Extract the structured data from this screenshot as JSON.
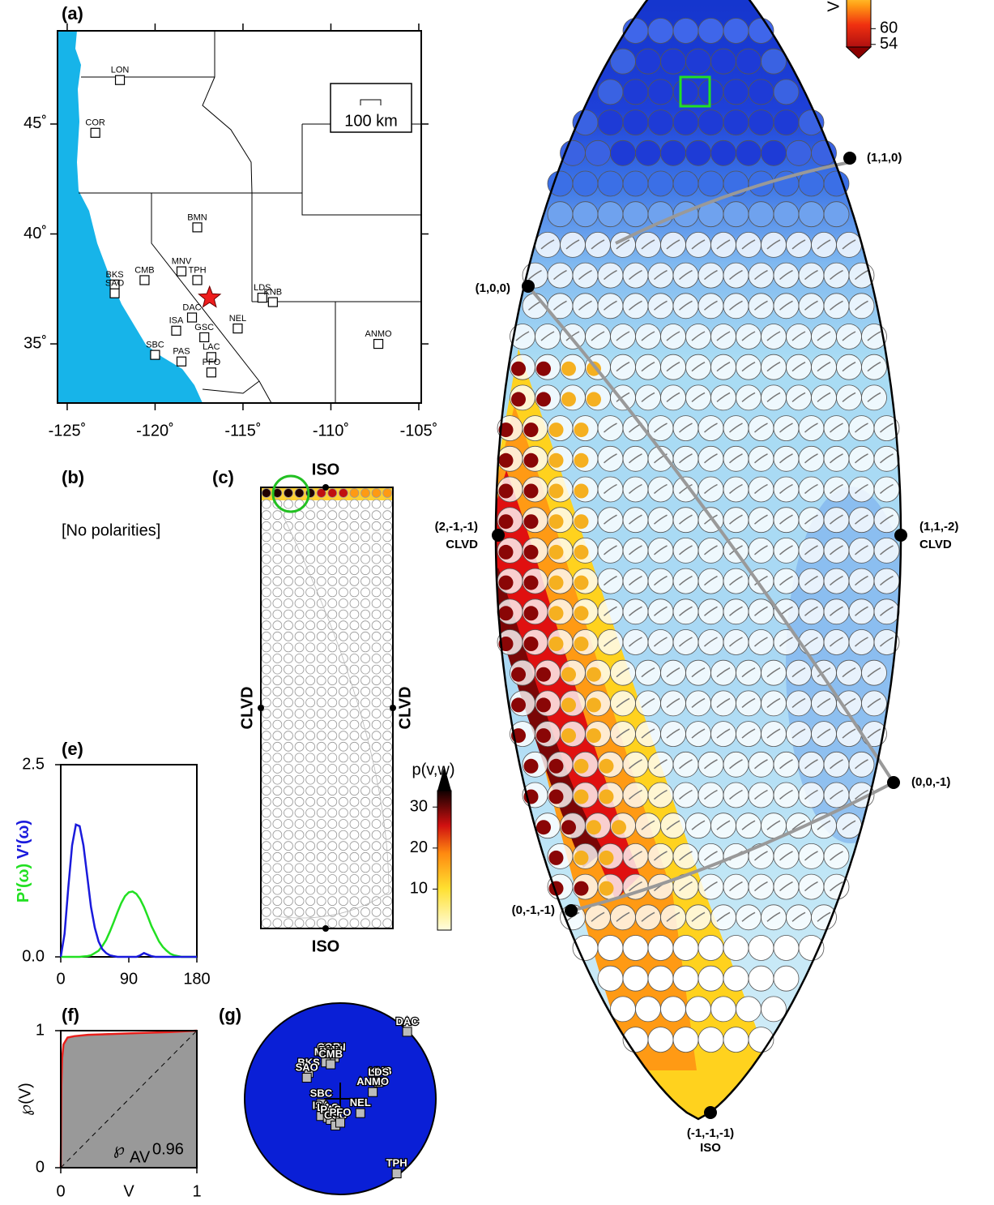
{
  "chart_data": [
    {
      "type": "map",
      "label": "(a)",
      "xlim": [
        -125.55,
        -104.86
      ],
      "ylim": [
        32.31,
        49.24
      ],
      "xticks": [
        {
          "value": -125,
          "label": "-125˚"
        },
        {
          "value": -120,
          "label": "-120˚"
        },
        {
          "value": -115,
          "label": "-115˚"
        },
        {
          "value": -110,
          "label": "-110˚"
        },
        {
          "value": -105,
          "label": "-105˚"
        }
      ],
      "yticks": [
        {
          "value": 35,
          "label": "35˚"
        },
        {
          "value": 40,
          "label": "40˚"
        },
        {
          "value": 45,
          "label": "45˚"
        }
      ],
      "scale_label": "100 km",
      "stations": [
        "LON",
        "COR",
        "BMN",
        "MNV",
        "TPH",
        "CMB",
        "BKS",
        "SAO",
        "DAC",
        "ISA",
        "NEL",
        "GSC",
        "LAC",
        "PFO",
        "PAS",
        "SBC",
        "LDS",
        "KNB",
        "ANMO"
      ],
      "x": [
        -122.0,
        -123.4,
        -117.6,
        -118.5,
        -117.6,
        -120.6,
        -122.3,
        -122.3,
        -117.9,
        -118.8,
        -115.3,
        -117.2,
        -116.8,
        -116.8,
        -118.5,
        -120.0,
        -113.9,
        -113.3,
        -107.3
      ],
      "y": [
        47.0,
        44.6,
        40.3,
        38.3,
        37.9,
        37.9,
        37.7,
        37.3,
        36.2,
        35.6,
        35.7,
        35.3,
        34.4,
        33.7,
        34.2,
        34.5,
        37.1,
        36.9,
        35.0
      ],
      "epicenter": {
        "x": -116.9,
        "y": 37.1,
        "color": "#ee1c1c"
      },
      "ocean_color": "#17b4e9"
    },
    {
      "type": "line",
      "label": "(e)",
      "x": [
        0,
        5,
        10,
        15,
        20,
        25,
        30,
        35,
        40,
        45,
        50,
        55,
        60,
        65,
        70,
        75,
        80,
        85,
        90,
        95,
        100,
        105,
        110,
        115,
        120,
        125,
        130,
        135,
        140,
        145,
        150,
        155,
        160,
        165,
        170,
        175,
        180
      ],
      "series": [
        {
          "name": "P'(ω)",
          "color": "#22e022",
          "values": [
            0,
            0,
            0,
            0,
            0,
            0,
            0.005,
            0.01,
            0.02,
            0.05,
            0.08,
            0.14,
            0.22,
            0.33,
            0.45,
            0.58,
            0.7,
            0.79,
            0.84,
            0.85,
            0.82,
            0.75,
            0.65,
            0.53,
            0.4,
            0.3,
            0.2,
            0.13,
            0.08,
            0.04,
            0.02,
            0.01,
            0,
            0,
            0,
            0,
            0
          ]
        },
        {
          "name": "V'(ω)",
          "color": "#1a1adc",
          "values": [
            0,
            0.3,
            0.9,
            1.45,
            1.72,
            1.7,
            1.45,
            1.05,
            0.65,
            0.38,
            0.2,
            0.1,
            0.05,
            0.02,
            0.01,
            0,
            0,
            0,
            0,
            0,
            0,
            0.02,
            0.05,
            0.03,
            0.01,
            0,
            0,
            0,
            0,
            0,
            0,
            0,
            0,
            0,
            0,
            0,
            0
          ]
        }
      ],
      "xlim": [
        0,
        180
      ],
      "ylim": [
        0,
        2.5
      ],
      "xticks": [
        0,
        90,
        180
      ],
      "yticks": [
        {
          "value": 0,
          "label": "0.0"
        },
        {
          "value": 2.5,
          "label": "2.5"
        }
      ]
    },
    {
      "type": "area",
      "label": "(f)",
      "x": [
        0,
        0.005,
        0.01,
        0.02,
        0.05,
        0.1,
        0.2,
        0.5,
        0.8,
        1
      ],
      "values": [
        0,
        0.6,
        0.8,
        0.9,
        0.95,
        0.96,
        0.97,
        0.98,
        0.99,
        1
      ],
      "color": "#e8201c",
      "fill": "#999999",
      "xlim": [
        0,
        1
      ],
      "ylim": [
        0,
        1
      ],
      "xticks": [
        0,
        1
      ],
      "yticks": [
        0,
        1
      ],
      "xlabel": "V",
      "ylabel": "℘(V)",
      "annotation": {
        "symbol": "℘",
        "subscript": "AV",
        "value": 0.96
      }
    },
    {
      "type": "scatter",
      "label": "(g)",
      "stations": [
        "LON",
        "COR",
        "BMN",
        "MNV",
        "CMB",
        "BKS",
        "SAO",
        "KNB",
        "LDS",
        "ANMO",
        "NEL",
        "SBC",
        "ISA",
        "LAC",
        "PAS",
        "GSC",
        "PFO",
        "DAC",
        "TPH"
      ],
      "x": [
        -0.06,
        -0.12,
        -0.1,
        -0.15,
        -0.1,
        -0.33,
        -0.35,
        0.42,
        0.4,
        0.34,
        0.21,
        -0.2,
        -0.2,
        -0.13,
        -0.1,
        -0.05,
        0.0,
        0.7,
        0.59
      ],
      "y": [
        0.43,
        0.43,
        0.4,
        0.38,
        0.36,
        0.27,
        0.22,
        0.18,
        0.17,
        0.07,
        -0.15,
        -0.05,
        -0.18,
        -0.2,
        -0.22,
        -0.28,
        -0.25,
        0.7,
        -0.78
      ],
      "xlim": [
        -1,
        1
      ],
      "ylim": [
        -1,
        1
      ],
      "color": "#0a1fd6"
    },
    {
      "type": "lune",
      "colorbar": {
        "label": "V",
        "ticks": [
          54,
          60
        ],
        "clim": [
          53,
          74
        ]
      },
      "points": [
        {
          "label": "(1,1,0)"
        },
        {
          "label": "(1,0,0)"
        },
        {
          "label": "(2,-1,-1)",
          "name": "CLVD"
        },
        {
          "label": "(1,1,-2)",
          "name": "CLVD"
        },
        {
          "label": "(0,0,-1)"
        },
        {
          "label": "(0,-1,-1)"
        },
        {
          "label": "(-1,-1,-1)",
          "name": "ISO"
        }
      ]
    }
  ],
  "panel_b": {
    "label": "(b)",
    "text": "[No polarities]"
  },
  "panel_c": {
    "label": "(c)",
    "top": "ISO",
    "bottom": "ISO",
    "left": "CLVD",
    "right": "CLVD",
    "colorbar": {
      "label": "p(v,w)",
      "ticks": [
        10,
        20,
        30
      ],
      "clim": [
        0,
        34
      ]
    }
  }
}
